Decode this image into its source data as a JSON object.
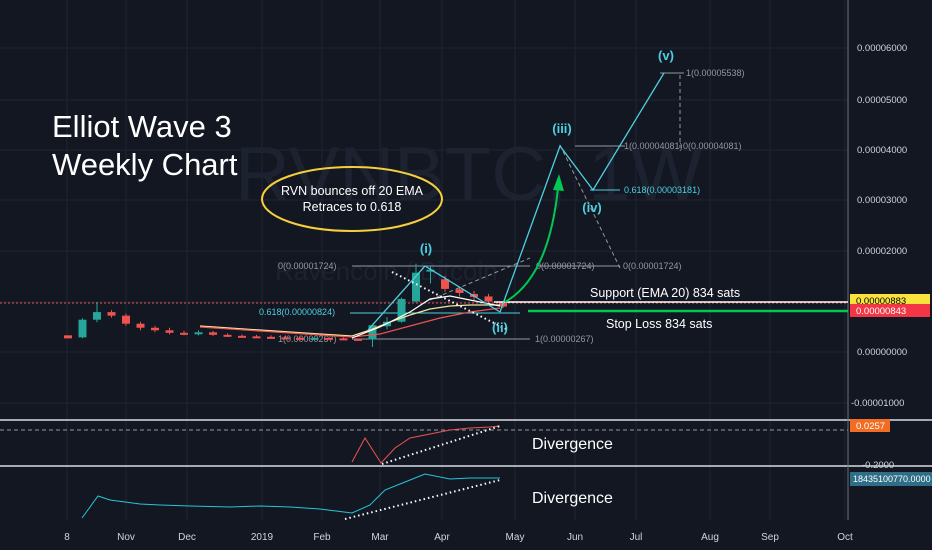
{
  "watermark": {
    "symbol": "RVNBTC, 1W",
    "description": "Ravencoin / Bitcoin"
  },
  "annotations": {
    "title_line1": "Elliot Wave 3",
    "title_line2": "Weekly Chart",
    "ellipse_line1": "RVN bounces off 20 EMA",
    "ellipse_line2": "Retraces to 0.618",
    "support": "Support (EMA 20) 834 sats",
    "stop_loss": "Stop Loss 834 sats",
    "divergence_1": "Divergence",
    "divergence_2": "Divergence"
  },
  "wave_labels": [
    "(i)",
    "(ii)",
    "(iii)",
    "(iv)",
    "(v)"
  ],
  "fib_labels": {
    "a0": "0(0.00001724)",
    "a618": "0.618(0.00000824)",
    "a1": "1(0.00000267)",
    "b0": "0(0.00001724)",
    "b1": "1(0.00000267)",
    "c1a": "1(0.00004081)",
    "c0": "0(0.00004081)",
    "c618": "0.618(0.00003181)",
    "c0low": "0(0.00001724)",
    "v1": "1(0.00005538)"
  },
  "price_axis": {
    "ticks": [
      "0.00006000",
      "0.00005000",
      "0.00004000",
      "0.00003000",
      "0.00002000",
      "0.00001000",
      "0.00000000",
      "-0.00001000"
    ],
    "badge_yellow": "0.00000883",
    "badge_red": "0.00000843"
  },
  "indicator_axis": {
    "rsi_badge": "0.0257",
    "rsi_tick": "-0.2000",
    "obv_badge": "18435100770.0000"
  },
  "time_axis": [
    "8",
    "Nov",
    "Dec",
    "2019",
    "Feb",
    "Mar",
    "Apr",
    "May",
    "Jun",
    "Jul",
    "Aug",
    "Sep",
    "Oct"
  ],
  "colors": {
    "up": "#26a69a",
    "down": "#ef5350",
    "wave": "#4dd0e1",
    "support": "#ffffff",
    "stop": "#00c853",
    "ellipse": "#f5d03c"
  },
  "chart_data": {
    "type": "candlestick",
    "timeframe": "1W",
    "ylim": [
      -1.2e-05,
      6.4e-05
    ],
    "candles": [
      [
        3.3e-06,
        3.3e-06,
        2.7e-06,
        2.7e-06
      ],
      [
        2.9e-06,
        6.7e-06,
        2.7e-06,
        6.4e-06
      ],
      [
        6.4e-06,
        9.9e-06,
        5.9e-06,
        7.9e-06
      ],
      [
        7.9e-06,
        8.3e-06,
        6.8e-06,
        7.2e-06
      ],
      [
        7.2e-06,
        7.6e-06,
        5.2e-06,
        5.6e-06
      ],
      [
        5.6e-06,
        6e-06,
        4.3e-06,
        4.8e-06
      ],
      [
        4.8e-06,
        5.2e-06,
        3.9e-06,
        4.3e-06
      ],
      [
        4.3e-06,
        4.8e-06,
        3.5e-06,
        3.8e-06
      ],
      [
        3.8e-06,
        4.2e-06,
        3.3e-06,
        3.6e-06
      ],
      [
        3.7e-06,
        4.3e-06,
        3.3e-06,
        3.9e-06
      ],
      [
        3.9e-06,
        4.2e-06,
        3.2e-06,
        3.4e-06
      ],
      [
        3.4e-06,
        3.7e-06,
        3e-06,
        3.2e-06
      ],
      [
        3.2e-06,
        3.5e-06,
        2.9e-06,
        3.1e-06
      ],
      [
        3.1e-06,
        3.4e-06,
        2.8e-06,
        3e-06
      ],
      [
        3e-06,
        3.3e-06,
        2.7e-06,
        2.9e-06
      ],
      [
        2.9e-06,
        3.2e-06,
        2.7e-06,
        2.8e-06
      ],
      [
        2.8e-06,
        3.1e-06,
        2.6e-06,
        2.7e-06
      ],
      [
        2.7e-06,
        3e-06,
        2.6e-06,
        2.8e-06
      ],
      [
        2.8e-06,
        3e-06,
        2.6e-06,
        2.7e-06
      ],
      [
        2.7e-06,
        2.9e-06,
        2.5e-06,
        2.6e-06
      ],
      [
        2.6e-06,
        2.7e-06,
        2.3e-06,
        2.5e-06
      ],
      [
        2.5e-06,
        5.5e-06,
        1e-06,
        5.3e-06
      ],
      [
        5.1e-06,
        6.9e-06,
        4.5e-06,
        6e-06
      ],
      [
        6e-06,
        1.08e-05,
        5.8e-06,
        1.05e-05
      ],
      [
        1e-05,
        1.75e-05,
        9.8e-06,
        1.57e-05
      ],
      [
        1.62e-05,
        1.7e-05,
        1.36e-05,
        1.63e-05
      ],
      [
        1.44e-05,
        1.51e-05,
        1.19e-05,
        1.25e-05
      ],
      [
        1.24e-05,
        1.29e-05,
        1.1e-05,
        1.17e-05
      ],
      [
        1.15e-05,
        1.21e-05,
        1.03e-05,
        1.09e-05
      ],
      [
        1.1e-05,
        1.15e-05,
        9.6e-06,
        1e-05
      ],
      [
        9.9e-06,
        1.01e-05,
        8.7e-06,
        9e-06
      ]
    ],
    "projection_wave": [
      {
        "label": "(ii)",
        "price": 8.43e-06
      },
      {
        "label": "(iii)",
        "price": 4.081e-05
      },
      {
        "label": "(iv)",
        "price": 3.181e-05
      },
      {
        "label": "(v)",
        "price": 5.538e-05
      }
    ],
    "support_level": 8.34e-06,
    "stop_loss_level": 8.34e-06
  }
}
